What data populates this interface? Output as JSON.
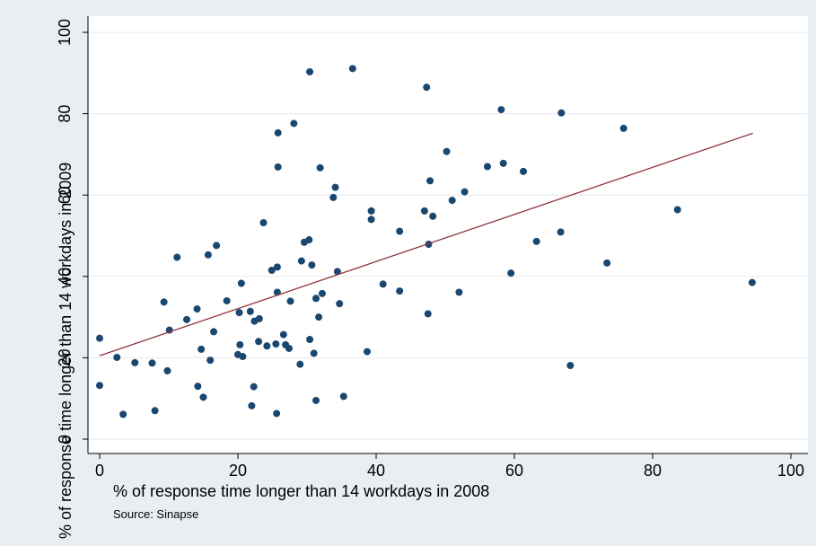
{
  "chart_data": {
    "type": "scatter",
    "xlabel": "% of response time longer than 14 workdays in 2008",
    "ylabel": "% of response time longer than 14 workdays in 2009",
    "note": "Source: Sinapse",
    "xlim": [
      0,
      100
    ],
    "ylim": [
      0,
      100
    ],
    "xticks": [
      0,
      20,
      40,
      60,
      80,
      100
    ],
    "yticks": [
      0,
      20,
      40,
      60,
      80,
      100
    ],
    "grid": "horizontal",
    "colors": {
      "background": "#e9eef2",
      "plot_background": "#ffffff",
      "points": "#1a476f",
      "fit_line": "#90353b",
      "grid": "#e6eaed"
    },
    "fit_line": {
      "x": [
        0,
        94.5
      ],
      "y": [
        20.5,
        75.2
      ]
    },
    "points": [
      {
        "x": 0.0,
        "y": 24.8
      },
      {
        "x": 0.0,
        "y": 13.2
      },
      {
        "x": 2.5,
        "y": 20.1
      },
      {
        "x": 3.4,
        "y": 6.1
      },
      {
        "x": 5.1,
        "y": 18.8
      },
      {
        "x": 7.6,
        "y": 18.7
      },
      {
        "x": 8.0,
        "y": 7.0
      },
      {
        "x": 9.3,
        "y": 33.7
      },
      {
        "x": 9.8,
        "y": 16.8
      },
      {
        "x": 10.1,
        "y": 26.8
      },
      {
        "x": 11.2,
        "y": 44.7
      },
      {
        "x": 12.6,
        "y": 29.4
      },
      {
        "x": 14.1,
        "y": 32.0
      },
      {
        "x": 14.2,
        "y": 13.0
      },
      {
        "x": 14.7,
        "y": 22.1
      },
      {
        "x": 15.0,
        "y": 10.3
      },
      {
        "x": 15.7,
        "y": 45.3
      },
      {
        "x": 16.0,
        "y": 19.4
      },
      {
        "x": 16.5,
        "y": 26.4
      },
      {
        "x": 16.9,
        "y": 47.6
      },
      {
        "x": 18.4,
        "y": 34.0
      },
      {
        "x": 20.0,
        "y": 20.8
      },
      {
        "x": 20.2,
        "y": 31.1
      },
      {
        "x": 20.3,
        "y": 23.2
      },
      {
        "x": 20.5,
        "y": 38.3
      },
      {
        "x": 20.7,
        "y": 20.3
      },
      {
        "x": 21.8,
        "y": 31.4
      },
      {
        "x": 22.0,
        "y": 8.2
      },
      {
        "x": 22.3,
        "y": 12.9
      },
      {
        "x": 22.4,
        "y": 29.0
      },
      {
        "x": 23.0,
        "y": 24.0
      },
      {
        "x": 23.1,
        "y": 29.6
      },
      {
        "x": 23.7,
        "y": 53.2
      },
      {
        "x": 24.2,
        "y": 22.9
      },
      {
        "x": 24.9,
        "y": 41.5
      },
      {
        "x": 25.5,
        "y": 23.4
      },
      {
        "x": 25.6,
        "y": 6.3
      },
      {
        "x": 25.7,
        "y": 36.1
      },
      {
        "x": 25.7,
        "y": 42.3
      },
      {
        "x": 25.8,
        "y": 66.9
      },
      {
        "x": 25.8,
        "y": 75.3
      },
      {
        "x": 26.6,
        "y": 25.7
      },
      {
        "x": 26.9,
        "y": 23.2
      },
      {
        "x": 27.4,
        "y": 22.3
      },
      {
        "x": 27.6,
        "y": 33.9
      },
      {
        "x": 28.1,
        "y": 77.6
      },
      {
        "x": 29.0,
        "y": 18.4
      },
      {
        "x": 29.2,
        "y": 43.8
      },
      {
        "x": 29.6,
        "y": 48.4
      },
      {
        "x": 30.3,
        "y": 49.0
      },
      {
        "x": 30.4,
        "y": 24.5
      },
      {
        "x": 30.4,
        "y": 90.3
      },
      {
        "x": 30.7,
        "y": 42.8
      },
      {
        "x": 31.0,
        "y": 21.1
      },
      {
        "x": 31.3,
        "y": 9.5
      },
      {
        "x": 31.3,
        "y": 34.6
      },
      {
        "x": 31.7,
        "y": 30.0
      },
      {
        "x": 31.9,
        "y": 66.7
      },
      {
        "x": 32.2,
        "y": 35.8
      },
      {
        "x": 33.8,
        "y": 59.4
      },
      {
        "x": 34.1,
        "y": 61.9
      },
      {
        "x": 34.4,
        "y": 41.2
      },
      {
        "x": 34.7,
        "y": 33.3
      },
      {
        "x": 35.3,
        "y": 10.5
      },
      {
        "x": 36.6,
        "y": 91.1
      },
      {
        "x": 38.7,
        "y": 21.5
      },
      {
        "x": 39.3,
        "y": 56.1
      },
      {
        "x": 39.3,
        "y": 54.0
      },
      {
        "x": 41.0,
        "y": 38.1
      },
      {
        "x": 43.4,
        "y": 36.4
      },
      {
        "x": 43.4,
        "y": 51.1
      },
      {
        "x": 47.0,
        "y": 56.1
      },
      {
        "x": 47.3,
        "y": 86.5
      },
      {
        "x": 47.5,
        "y": 30.8
      },
      {
        "x": 47.6,
        "y": 47.9
      },
      {
        "x": 47.8,
        "y": 63.5
      },
      {
        "x": 48.2,
        "y": 54.8
      },
      {
        "x": 50.2,
        "y": 70.7
      },
      {
        "x": 51.0,
        "y": 58.7
      },
      {
        "x": 52.0,
        "y": 36.1
      },
      {
        "x": 52.8,
        "y": 60.8
      },
      {
        "x": 56.1,
        "y": 67.0
      },
      {
        "x": 58.1,
        "y": 81.0
      },
      {
        "x": 58.4,
        "y": 67.8
      },
      {
        "x": 59.5,
        "y": 40.8
      },
      {
        "x": 61.3,
        "y": 65.8
      },
      {
        "x": 63.2,
        "y": 48.6
      },
      {
        "x": 66.7,
        "y": 50.9
      },
      {
        "x": 66.8,
        "y": 80.2
      },
      {
        "x": 68.1,
        "y": 18.1
      },
      {
        "x": 73.4,
        "y": 43.3
      },
      {
        "x": 75.8,
        "y": 76.4
      },
      {
        "x": 83.6,
        "y": 56.4
      },
      {
        "x": 94.4,
        "y": 38.5
      }
    ]
  }
}
